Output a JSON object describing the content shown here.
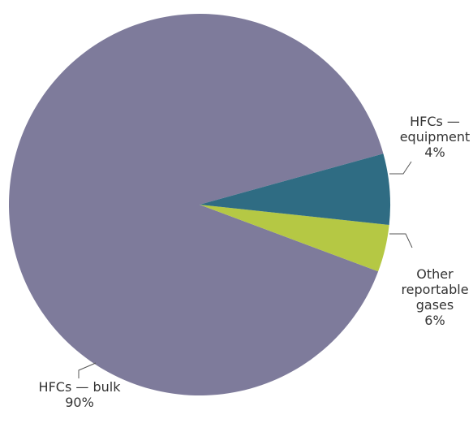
{
  "chart_data": {
    "type": "pie",
    "title": "",
    "slices": [
      {
        "label": "HFCs — bulk",
        "label_lines": [
          "HFCs — bulk",
          "90%"
        ],
        "value": 90,
        "value_label": "90%",
        "color": "#7e7b9b"
      },
      {
        "label": "HFCs — equipment",
        "label_lines": [
          "HFCs —",
          "equipment",
          "4%"
        ],
        "value": 4,
        "value_label": "4%",
        "color": "#b5c844"
      },
      {
        "label": "Other reportable gases",
        "label_lines": [
          "Other",
          "reportable",
          "gases",
          "6%"
        ],
        "value": 6,
        "value_label": "6%",
        "color": "#2f6c83"
      }
    ],
    "legend": "none",
    "label_style": "outside labels with leader lines"
  }
}
